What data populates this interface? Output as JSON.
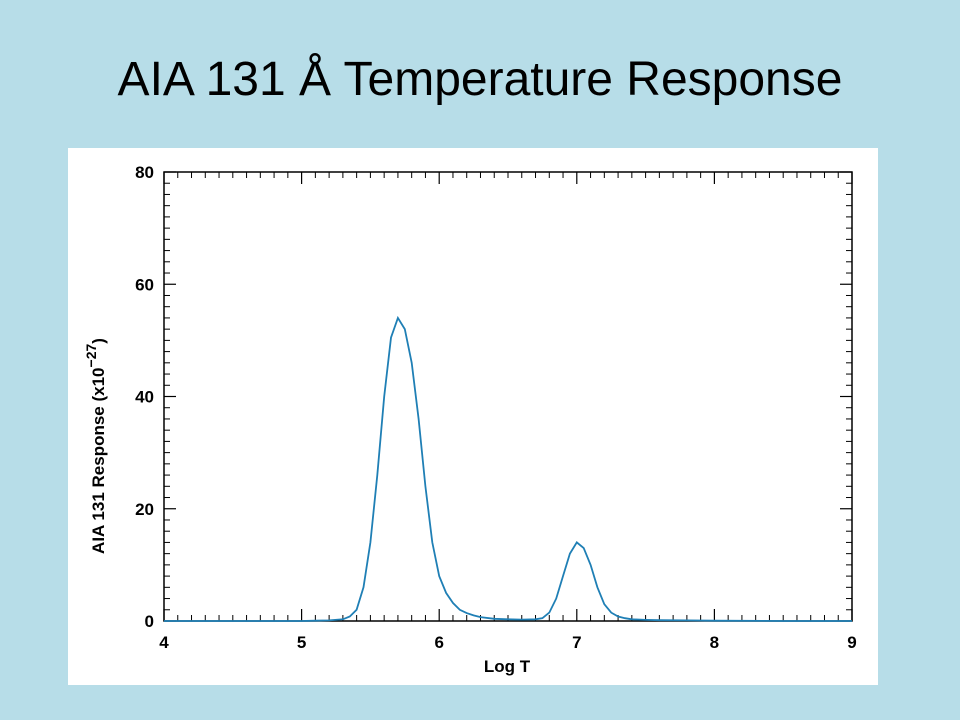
{
  "slide": {
    "title": "AIA 131 Å Temperature Response"
  },
  "chart_data": {
    "type": "line",
    "xlabel": "Log T",
    "ylabel_main": "AIA 131 Response (x10",
    "ylabel_exp": "−27",
    "ylabel_close": ")",
    "xlim": [
      4,
      9
    ],
    "ylim": [
      0,
      80
    ],
    "x_ticks": [
      4,
      5,
      6,
      7,
      8,
      9
    ],
    "y_ticks": [
      0,
      20,
      40,
      60,
      80
    ],
    "grid": false,
    "line_color": "#1f7fb5",
    "series": [
      {
        "x": [
          4.0,
          4.5,
          5.0,
          5.1,
          5.2,
          5.3,
          5.35,
          5.4,
          5.45,
          5.5,
          5.55,
          5.6,
          5.65,
          5.7,
          5.75,
          5.8,
          5.85,
          5.9,
          5.95,
          6.0,
          6.05,
          6.1,
          6.15,
          6.2,
          6.25,
          6.3,
          6.4,
          6.5,
          6.6,
          6.7,
          6.75,
          6.8,
          6.85,
          6.9,
          6.95,
          7.0,
          7.05,
          7.1,
          7.15,
          7.2,
          7.25,
          7.3,
          7.35,
          7.4,
          7.5,
          7.6,
          7.8,
          8.0,
          8.5,
          9.0
        ],
        "y": [
          0.0,
          0.0,
          0.0,
          0.05,
          0.1,
          0.3,
          0.8,
          2.0,
          6.0,
          14.0,
          26.0,
          40.0,
          50.5,
          54.0,
          52.0,
          46.0,
          36.0,
          24.0,
          14.0,
          8.0,
          5.0,
          3.2,
          2.0,
          1.4,
          1.0,
          0.7,
          0.4,
          0.3,
          0.25,
          0.3,
          0.5,
          1.5,
          4.0,
          8.0,
          12.0,
          14.0,
          13.0,
          10.0,
          6.0,
          3.0,
          1.5,
          0.8,
          0.5,
          0.3,
          0.2,
          0.15,
          0.1,
          0.05,
          0.0,
          0.0
        ]
      }
    ]
  }
}
